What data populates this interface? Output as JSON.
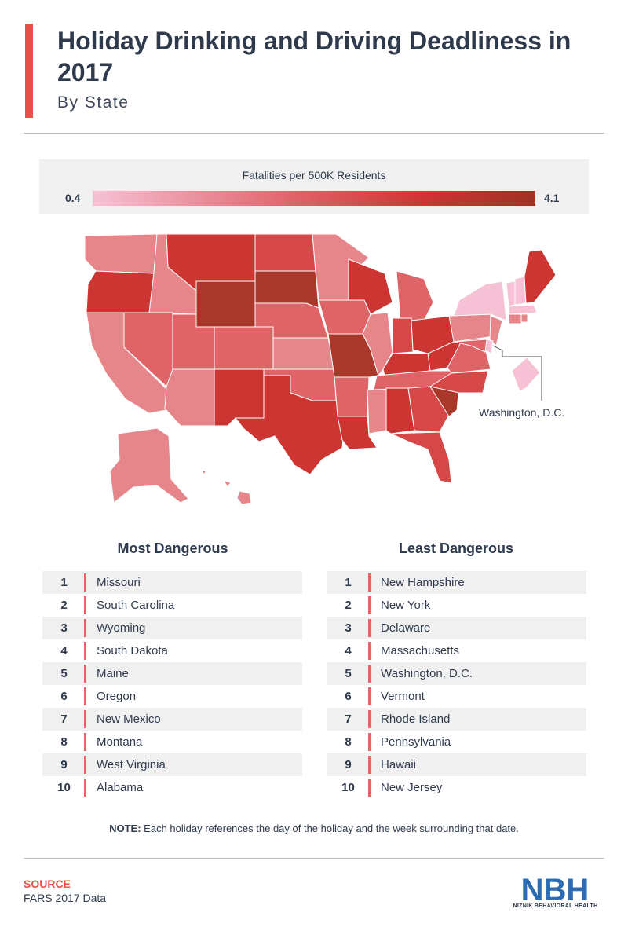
{
  "header": {
    "title": "Holiday Drinking and Driving Deadliness in 2017",
    "subtitle": "By State"
  },
  "legend": {
    "title": "Fatalities per 500K Residents",
    "min": "0.4",
    "max": "4.1",
    "colors": {
      "low": "#f6c1d5",
      "mid": "#e0646a",
      "high": "#cd3533",
      "top": "#9e3225"
    }
  },
  "map": {
    "inset_label": "Washington, D.C.",
    "colors": {
      "1": "#f6c1d5",
      "2": "#e6868a",
      "3": "#de6468",
      "4": "#d64848",
      "5": "#cd3533",
      "6": "#a9372a"
    }
  },
  "most_dangerous": {
    "heading": "Most Dangerous",
    "items": [
      {
        "rank": "1",
        "name": "Missouri"
      },
      {
        "rank": "2",
        "name": "South Carolina"
      },
      {
        "rank": "3",
        "name": "Wyoming"
      },
      {
        "rank": "4",
        "name": "South Dakota"
      },
      {
        "rank": "5",
        "name": "Maine"
      },
      {
        "rank": "6",
        "name": "Oregon"
      },
      {
        "rank": "7",
        "name": "New Mexico"
      },
      {
        "rank": "8",
        "name": "Montana"
      },
      {
        "rank": "9",
        "name": "West Virginia"
      },
      {
        "rank": "10",
        "name": "Alabama"
      }
    ]
  },
  "least_dangerous": {
    "heading": "Least Dangerous",
    "items": [
      {
        "rank": "1",
        "name": "New Hampshire"
      },
      {
        "rank": "2",
        "name": "New York"
      },
      {
        "rank": "3",
        "name": "Delaware"
      },
      {
        "rank": "4",
        "name": "Massachusetts"
      },
      {
        "rank": "5",
        "name": "Washington, D.C."
      },
      {
        "rank": "6",
        "name": "Vermont"
      },
      {
        "rank": "7",
        "name": "Rhode Island"
      },
      {
        "rank": "8",
        "name": "Pennsylvania"
      },
      {
        "rank": "9",
        "name": "Hawaii"
      },
      {
        "rank": "10",
        "name": "New Jersey"
      }
    ]
  },
  "note": {
    "label": "NOTE:",
    "text": " Each holiday references the day of the holiday and the week surrounding that date."
  },
  "source": {
    "label": "SOURCE",
    "text": "FARS 2017 Data"
  },
  "logo": {
    "text": "NBH",
    "subtext": "NIZNIK BEHAVIORAL HEALTH",
    "color": "#2b6cb5"
  }
}
